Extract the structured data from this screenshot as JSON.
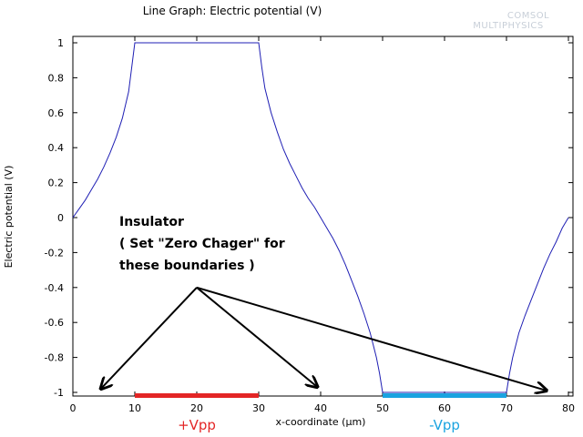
{
  "chart_data": {
    "type": "line",
    "title": "Line Graph: Electric potential (V)",
    "xlabel": "x-coordinate (µm)",
    "ylabel": "Electric potential (V)",
    "xlim": [
      0,
      80
    ],
    "ylim": [
      -1,
      1
    ],
    "x_ticks": [
      "0",
      "10",
      "20",
      "30",
      "40",
      "50",
      "60",
      "70",
      "80"
    ],
    "y_ticks": [
      "1",
      "0.8",
      "0.6",
      "0.4",
      "0.2",
      "0",
      "-0.2",
      "-0.4",
      "-0.6",
      "-0.8",
      "-1"
    ],
    "grid": false,
    "series": [
      {
        "color": "#1f1fb4",
        "x": [
          0,
          1,
          2,
          3,
          4,
          5,
          6,
          7,
          8,
          9,
          9.5,
          10,
          30,
          30.5,
          31,
          32,
          33,
          34,
          35,
          36,
          37,
          38,
          39,
          40,
          41,
          42,
          43,
          44,
          45,
          46,
          47,
          48,
          49,
          49.5,
          50,
          70,
          70.5,
          71,
          72,
          73,
          74,
          75,
          76,
          77,
          78,
          79,
          80
        ],
        "y": [
          0,
          0.05,
          0.1,
          0.16,
          0.22,
          0.29,
          0.37,
          0.46,
          0.57,
          0.72,
          0.86,
          1,
          1,
          0.86,
          0.74,
          0.6,
          0.49,
          0.39,
          0.31,
          0.24,
          0.17,
          0.11,
          0.06,
          0,
          -0.06,
          -0.12,
          -0.19,
          -0.27,
          -0.36,
          -0.45,
          -0.55,
          -0.66,
          -0.8,
          -0.89,
          -1,
          -1,
          -0.89,
          -0.8,
          -0.66,
          -0.56,
          -0.47,
          -0.38,
          -0.29,
          -0.21,
          -0.14,
          -0.06,
          0
        ]
      }
    ],
    "electrodes": [
      {
        "label": "+Vpp",
        "x_range": [
          10,
          30
        ],
        "color": "#e32626"
      },
      {
        "label": "-Vpp",
        "x_range": [
          50,
          70
        ],
        "color": "#1aa3e0"
      }
    ],
    "annotation": {
      "lines": [
        "Insulator",
        "( Set \"Zero Chager\" for",
        "these boundaries )"
      ],
      "origin": [
        20,
        -0.4
      ],
      "arrow_targets": [
        [
          4.5,
          -0.98
        ],
        [
          39.5,
          -0.97
        ],
        [
          76.5,
          -0.99
        ]
      ]
    }
  },
  "watermark": {
    "line1": "COMSOL",
    "line2": "MULTIPHYSICS"
  }
}
